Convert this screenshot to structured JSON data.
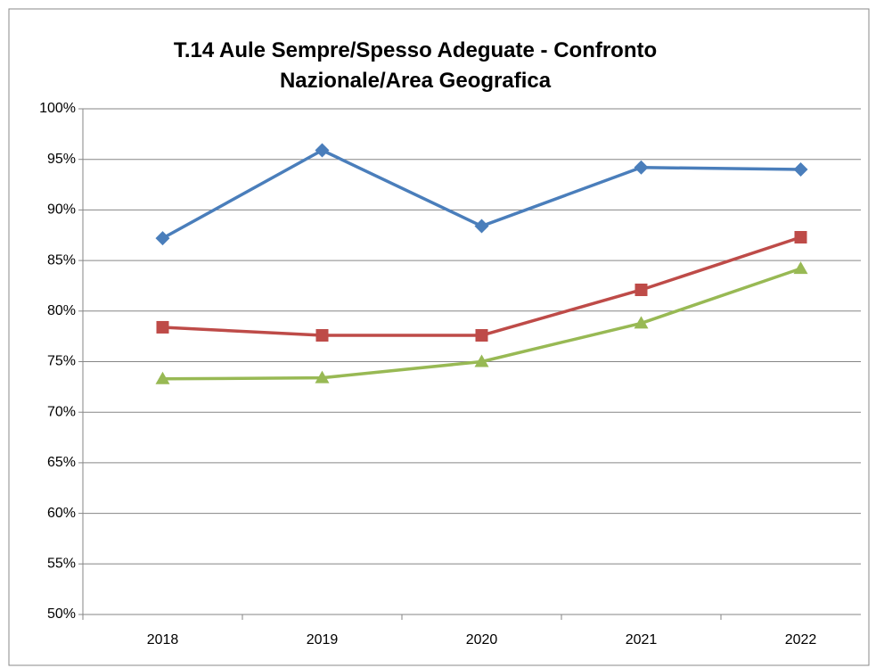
{
  "chart_data": {
    "type": "line",
    "title": "T.14 Aule Sempre/Spesso Adeguate - Confronto Nazionale/Area Geografica",
    "categories": [
      "2018",
      "2019",
      "2020",
      "2021",
      "2022"
    ],
    "series": [
      {
        "color": "#4a7ebb",
        "marker": "diamond",
        "values": [
          87.2,
          95.9,
          88.4,
          94.2,
          94.0
        ]
      },
      {
        "color": "#be4b48",
        "marker": "square",
        "values": [
          78.4,
          77.6,
          77.6,
          82.1,
          87.3
        ]
      },
      {
        "color": "#98b954",
        "marker": "triangle",
        "values": [
          73.3,
          73.4,
          75.0,
          78.8,
          84.2
        ]
      }
    ],
    "ylim": [
      50,
      100
    ],
    "yticks": [
      {
        "value": 50,
        "label": "50%"
      },
      {
        "value": 55,
        "label": "55%"
      },
      {
        "value": 60,
        "label": "60%"
      },
      {
        "value": 65,
        "label": "65%"
      },
      {
        "value": 70,
        "label": "70%"
      },
      {
        "value": 75,
        "label": "75%"
      },
      {
        "value": 80,
        "label": "80%"
      },
      {
        "value": 85,
        "label": "85%"
      },
      {
        "value": 90,
        "label": "90%"
      },
      {
        "value": 95,
        "label": "95%"
      },
      {
        "value": 100,
        "label": "100%"
      }
    ],
    "grid": true
  }
}
